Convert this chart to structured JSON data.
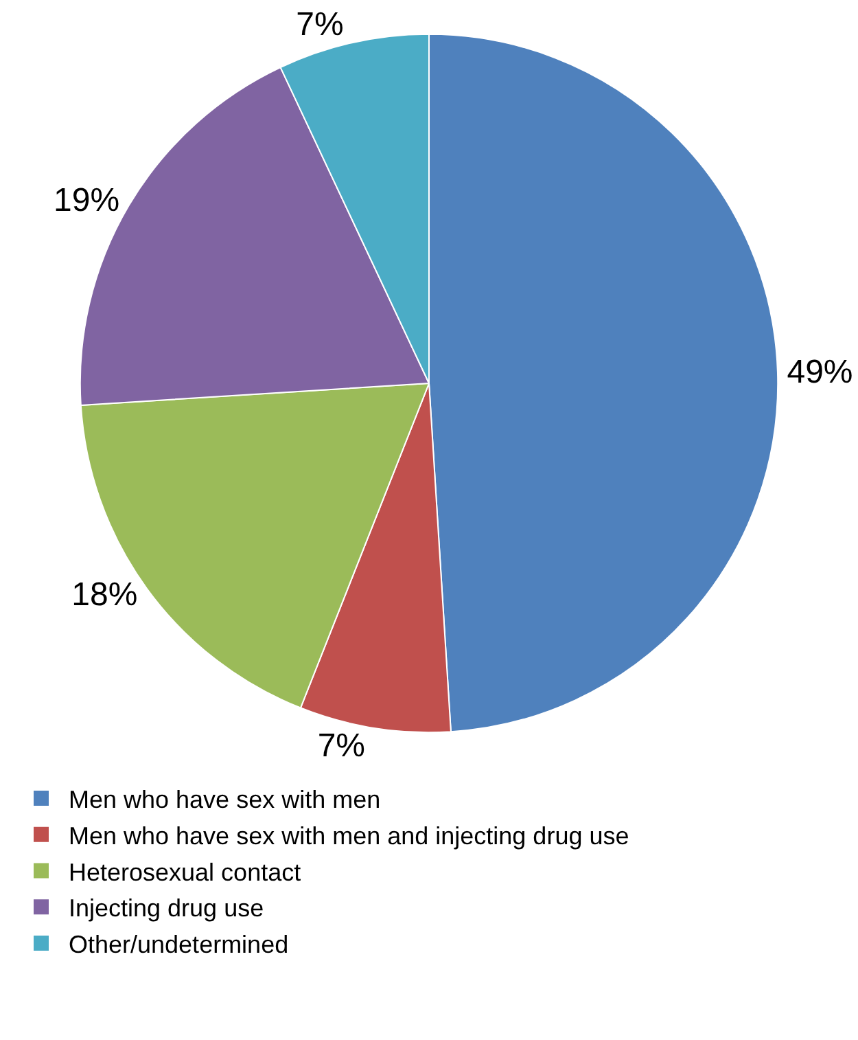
{
  "chart_data": {
    "type": "pie",
    "categories": [
      "Men who have sex with men",
      "Men who have sex with men and injecting drug use",
      "Heterosexual contact",
      "Injecting drug use",
      "Other/undetermined"
    ],
    "values": [
      49,
      7,
      18,
      19,
      7
    ],
    "colors": [
      "#4f81bd",
      "#c0504d",
      "#9bbb59",
      "#8064a2",
      "#4bacc6"
    ],
    "value_labels": [
      "49%",
      "7%",
      "18%",
      "19%",
      "7%"
    ],
    "legend": "bottom"
  }
}
